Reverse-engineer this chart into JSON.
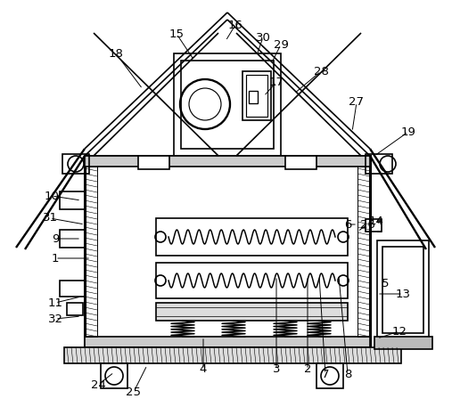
{
  "bg_color": "#ffffff",
  "lc": "#000000",
  "lw": 1.2,
  "fig_w": 5.07,
  "fig_h": 4.57,
  "dpi": 100
}
